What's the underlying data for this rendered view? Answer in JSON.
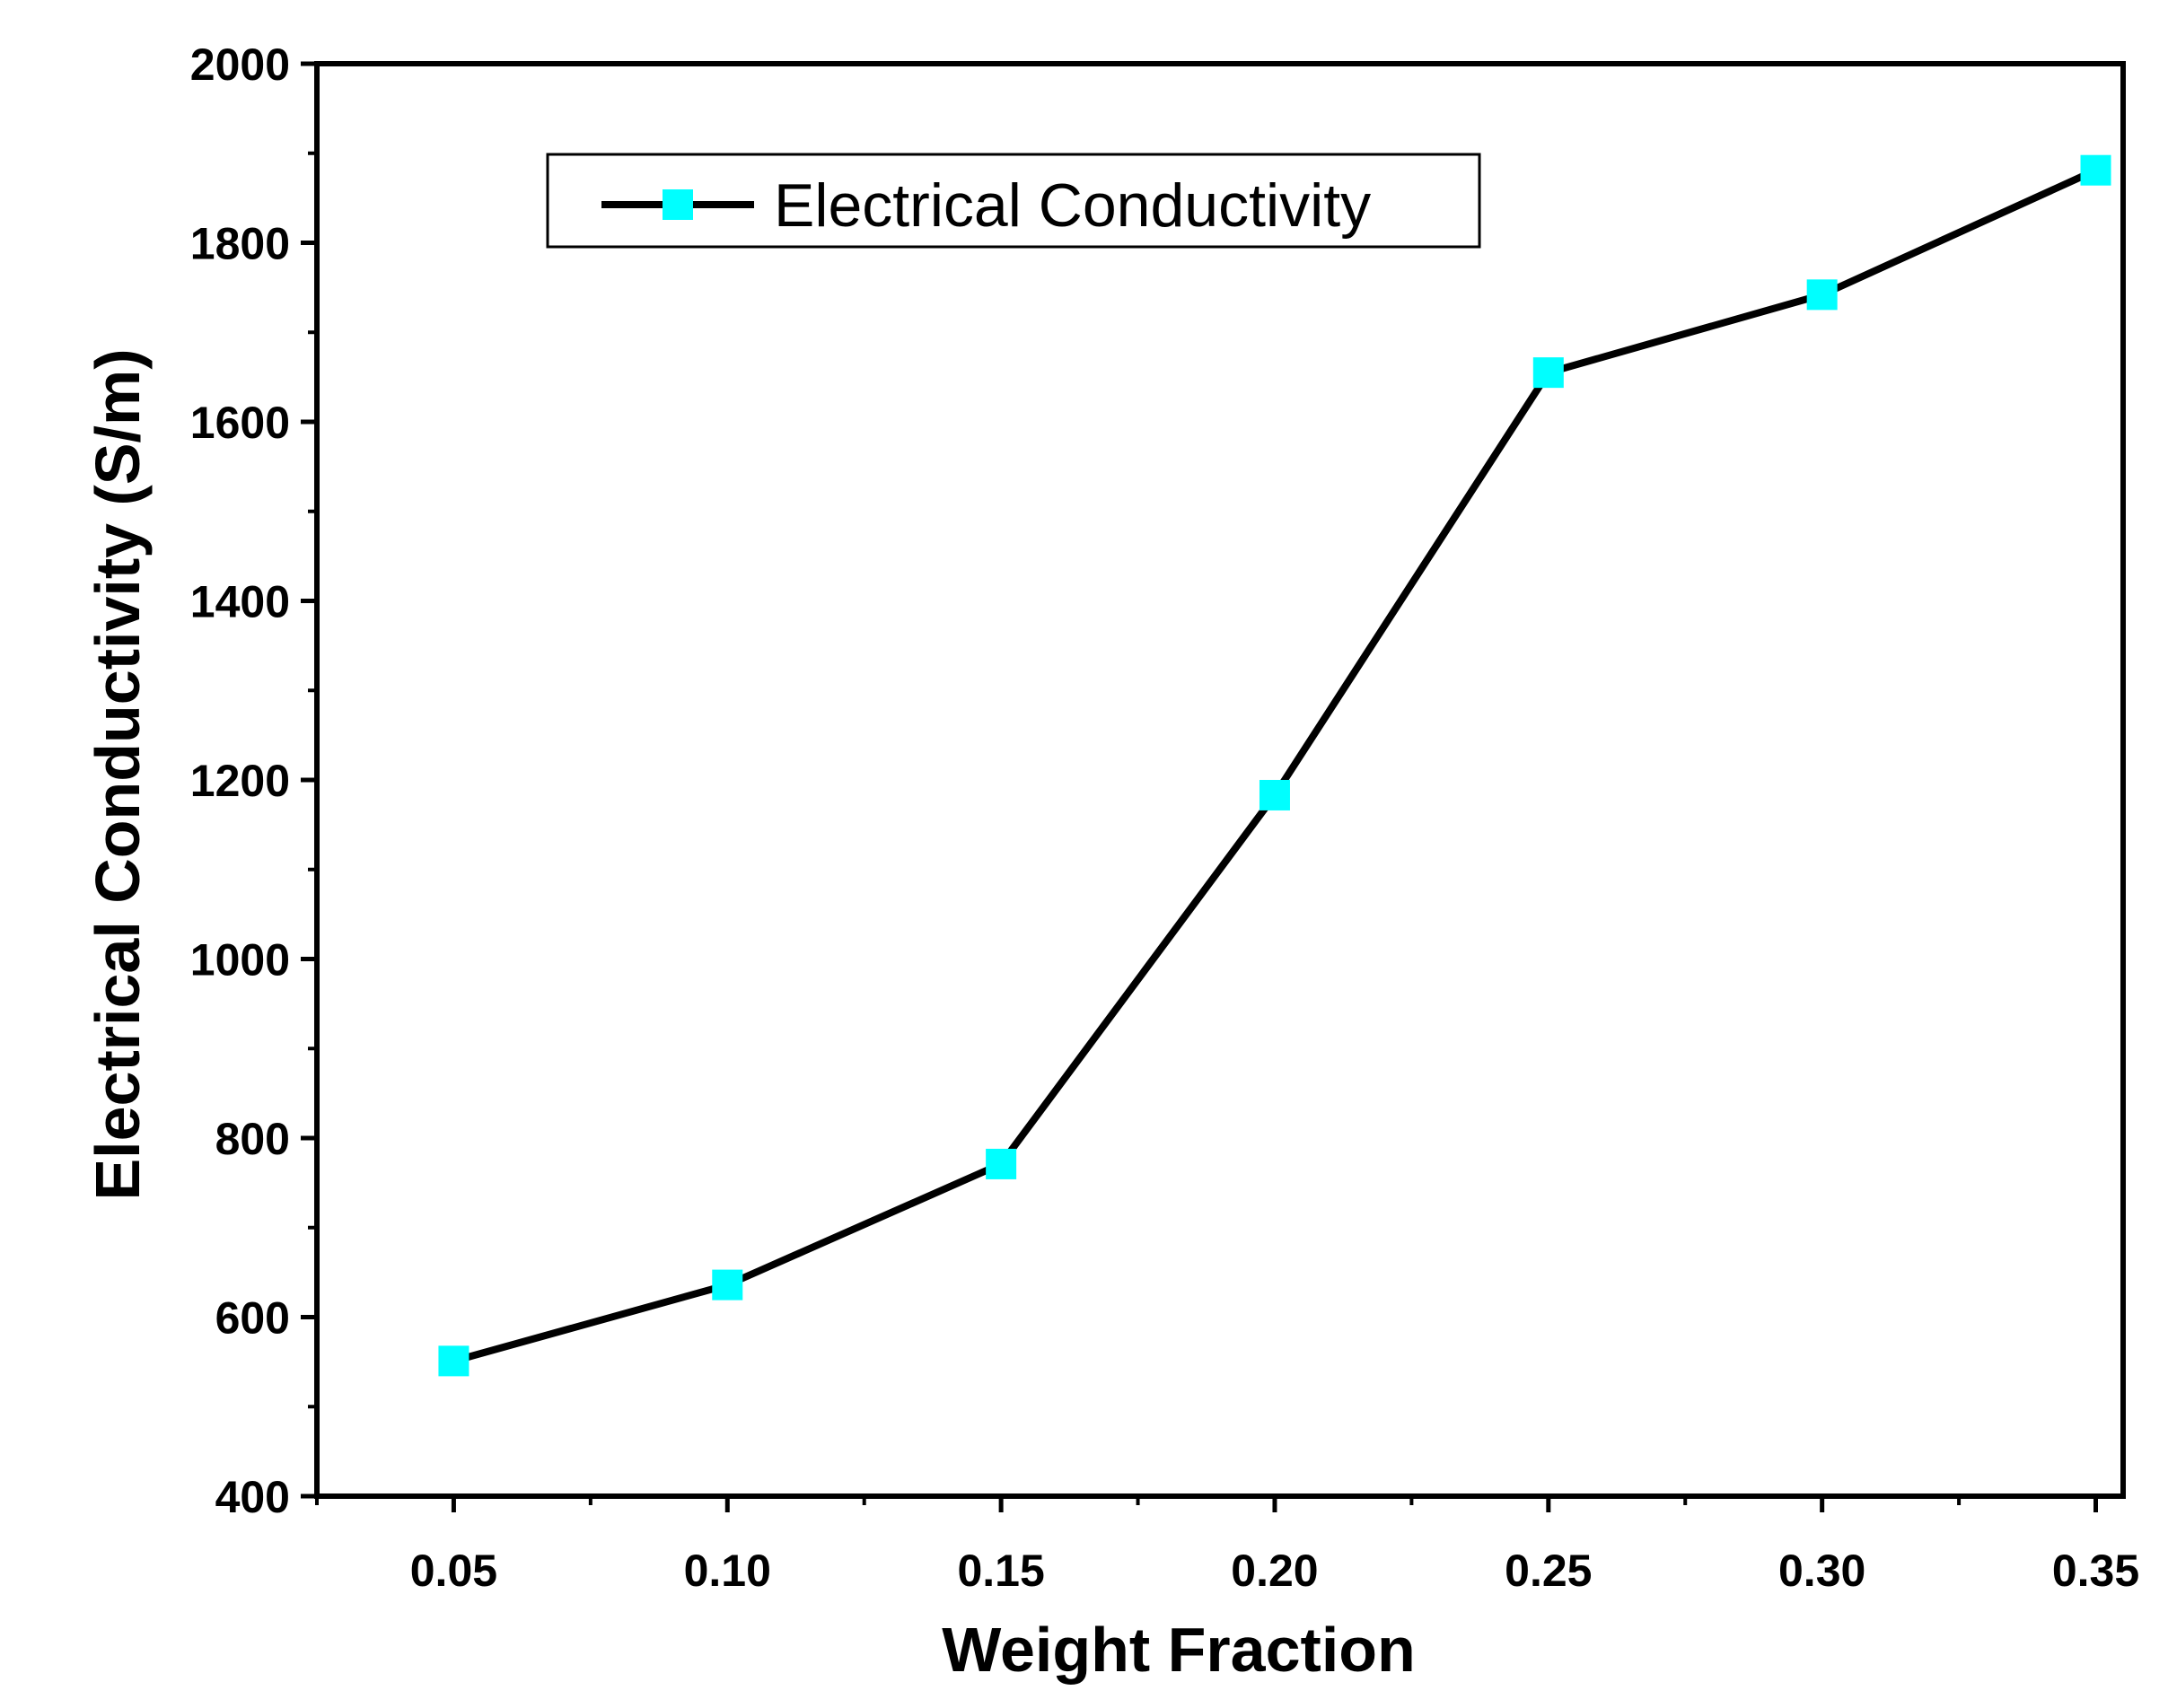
{
  "chart_data": {
    "type": "line",
    "title": "",
    "xlabel": "Weight Fraction",
    "ylabel": "Electrical Conductivity (S/m)",
    "xlim": [
      0.025,
      0.355
    ],
    "ylim": [
      400,
      2000
    ],
    "x_ticks": [
      "0.05",
      "0.10",
      "0.15",
      "0.20",
      "0.25",
      "0.30",
      "0.35"
    ],
    "y_ticks": [
      "400",
      "600",
      "800",
      "1000",
      "1200",
      "1400",
      "1600",
      "1800",
      "2000"
    ],
    "grid": false,
    "legend_position": "top-left",
    "series": [
      {
        "name": "Electrical Conductivity",
        "color": "#00FFFF",
        "line_color": "#000000",
        "marker": "square",
        "x": [
          0.05,
          0.1,
          0.15,
          0.2,
          0.25,
          0.3,
          0.35
        ],
        "values": [
          551,
          636,
          771,
          1183,
          1655,
          1742,
          1881
        ]
      }
    ]
  }
}
